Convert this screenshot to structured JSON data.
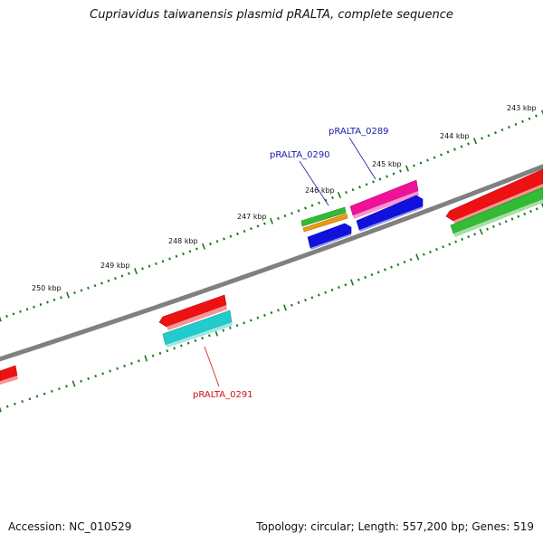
{
  "header": {
    "title": "Cupriavidus taiwanensis plasmid pRALTA, complete sequence"
  },
  "footer": {
    "accession": "Accession: NC_010529",
    "summary": "Topology: circular; Length: 557,200 bp; Genes: 519"
  },
  "colors": {
    "backbone": "#808080",
    "ticks": "#1f7a1f",
    "red": "#ee1111",
    "green": "#33bb33",
    "cyan": "#22cccc",
    "magenta": "#ee1199",
    "blue": "#1111dd",
    "orange": "#ee9911",
    "label_blue": "#1a1aaa",
    "label_red": "#cc1111"
  },
  "ruler": {
    "labels": [
      "243 kbp",
      "244 kbp",
      "245 kbp",
      "246 kbp",
      "247 kbp",
      "248 kbp",
      "249 kbp",
      "250 kbp"
    ]
  },
  "genes": [
    {
      "name": "pRALTA_0289",
      "color": "blue"
    },
    {
      "name": "pRALTA_0290",
      "color": "blue"
    },
    {
      "name": "pRALTA_0291",
      "color": "red"
    }
  ]
}
